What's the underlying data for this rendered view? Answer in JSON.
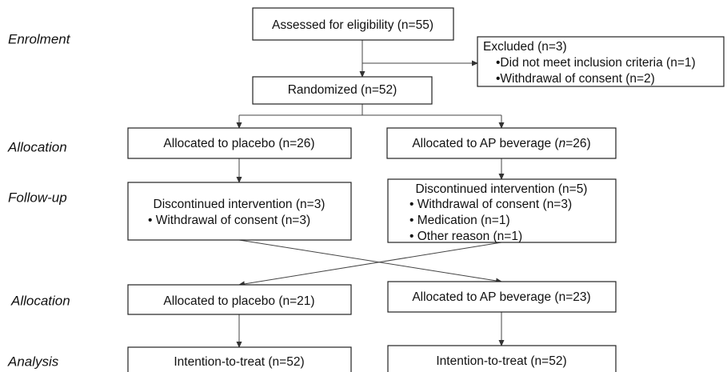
{
  "stages": [
    "Enrolment",
    "Allocation",
    "Follow-up",
    "Allocation",
    "Analysis"
  ],
  "nodes": {
    "assessed": "Assessed for eligibility (n=55)",
    "excluded": [
      "Excluded (n=3)",
      "•Did not meet inclusion criteria (n=1)",
      "•Withdrawal of consent (n=2)"
    ],
    "randomized": "Randomized (n=52)",
    "alloc_placebo": "Allocated to placebo (n=26)",
    "alloc_ap": [
      "Allocated to AP beverage (",
      "n",
      "=26)"
    ],
    "disc_placebo": [
      "Discontinued intervention (n=3)",
      "• Withdrawal of consent (n=3)"
    ],
    "disc_ap": [
      "Discontinued intervention (n=5)",
      "• Withdrawal of consent (n=3)",
      "• Medication (n=1)",
      "• Other reason (n=1)"
    ],
    "alloc2_placebo": "Allocated to placebo (n=21)",
    "alloc2_ap": "Allocated to AP beverage (n=23)",
    "itt_placebo": "Intention-to-treat (n=52)",
    "itt_ap": "Intention-to-treat (n=52)"
  }
}
